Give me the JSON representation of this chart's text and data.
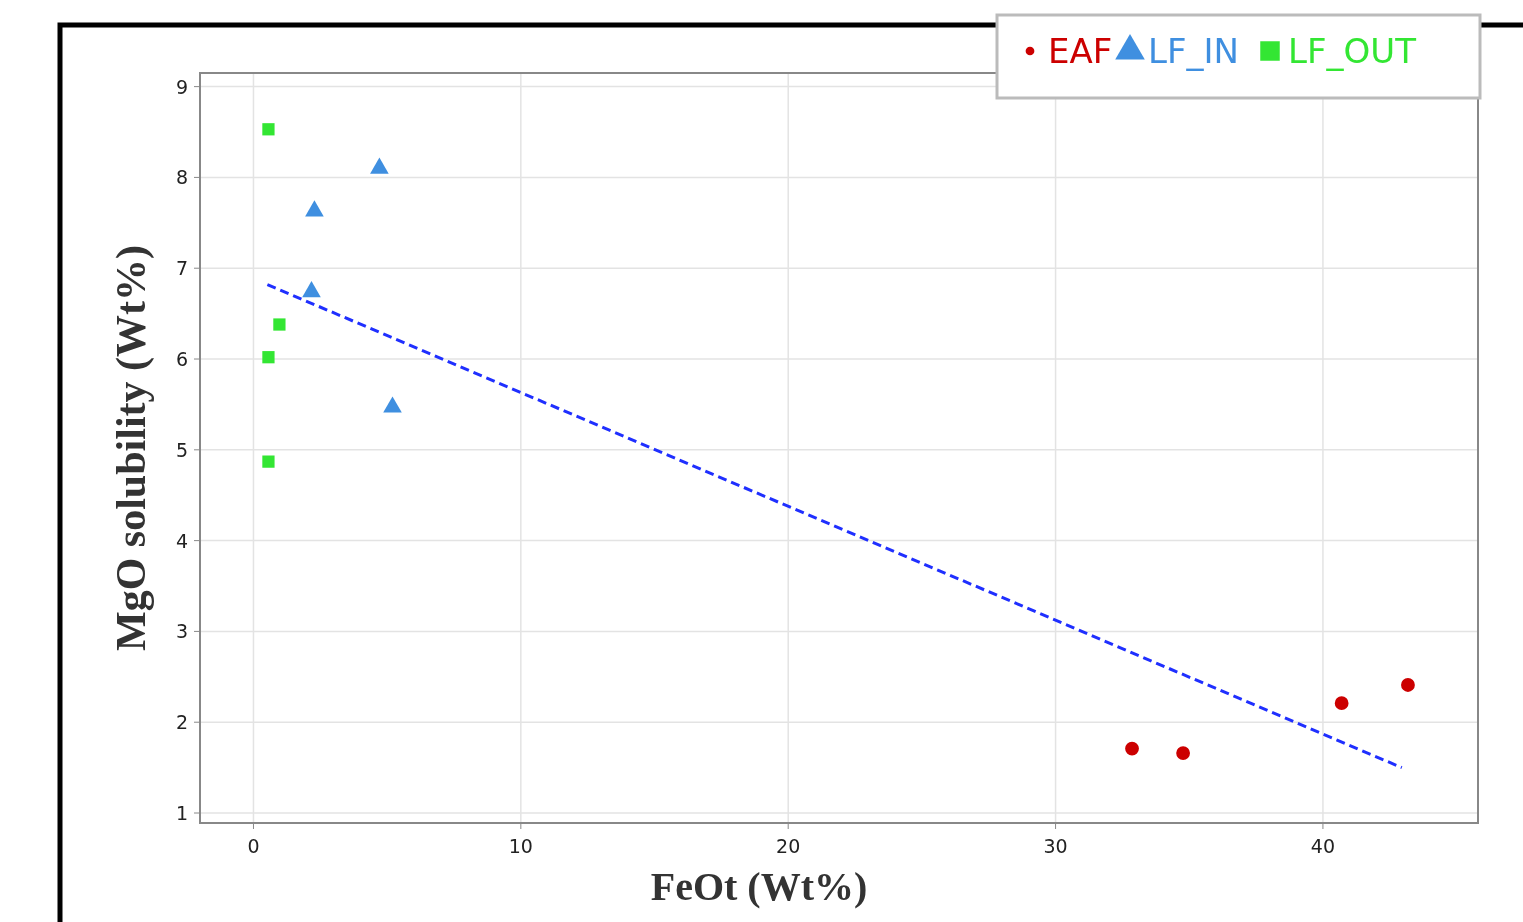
{
  "chart_data": {
    "type": "scatter",
    "xlabel": "FeOt  (Wt%)",
    "ylabel": "MgO solubility (Wt%)",
    "xlim": [
      -2,
      45.8
    ],
    "ylim": [
      0.89,
      9.15
    ],
    "xticks": [
      0,
      10,
      20,
      30,
      40
    ],
    "yticks": [
      1,
      2,
      3,
      4,
      5,
      6,
      7,
      8,
      9
    ],
    "grid": true,
    "legend": "top right",
    "series": [
      {
        "name": "EAF",
        "color": "#cc0000",
        "marker": "circle",
        "x": [
          32.86,
          34.77,
          40.7,
          43.18
        ],
        "values": [
          1.71,
          1.66,
          2.21,
          2.41
        ]
      },
      {
        "name": "LF_IN",
        "color": "#3f8fe0",
        "marker": "triangle",
        "x": [
          4.71,
          2.28,
          2.17,
          5.2
        ],
        "values": [
          8.1,
          7.63,
          6.74,
          5.47
        ]
      },
      {
        "name": "LF_OUT",
        "color": "#33e633",
        "marker": "square",
        "x": [
          0.56,
          0.56,
          0.97,
          0.56
        ],
        "values": [
          8.53,
          6.02,
          6.38,
          4.87
        ]
      },
      {
        "type": "line",
        "color": "#1f2fff",
        "line_style": "dashed",
        "marker": "none",
        "x": [
          0.52,
          42.95
        ],
        "values": [
          6.82,
          1.5
        ]
      }
    ]
  }
}
